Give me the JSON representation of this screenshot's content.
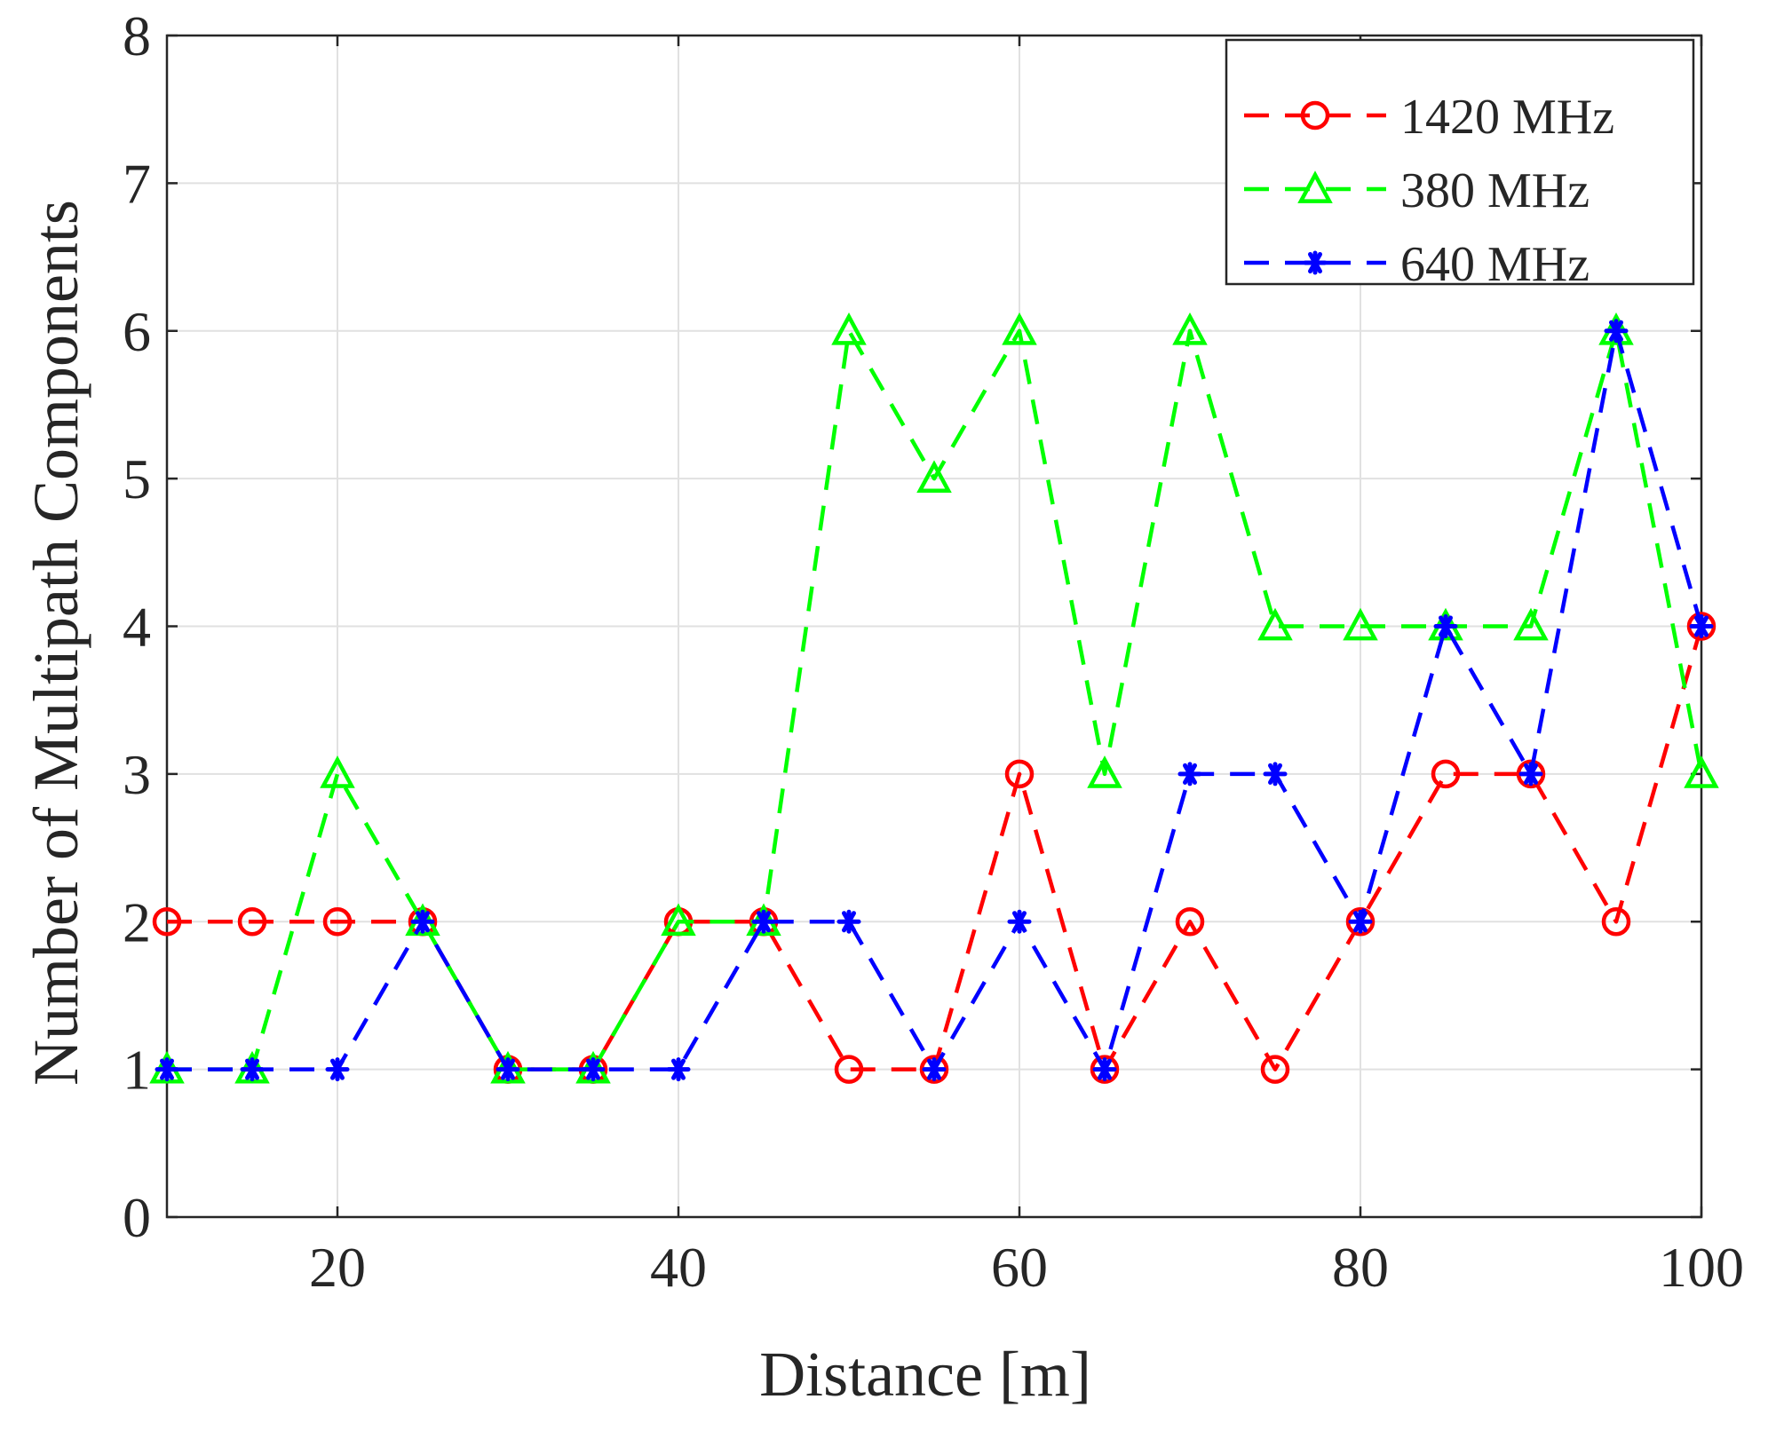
{
  "chart_data": {
    "type": "line",
    "title": "",
    "xlabel": "Distance [m]",
    "ylabel": "Number of Multipath Components",
    "xlim": [
      10,
      100
    ],
    "ylim": [
      0,
      8
    ],
    "xticks": [
      20,
      40,
      60,
      80,
      100
    ],
    "yticks": [
      0,
      1,
      2,
      3,
      4,
      5,
      6,
      7,
      8
    ],
    "grid": true,
    "legend_position": "top-right",
    "x": [
      10,
      15,
      20,
      25,
      30,
      35,
      40,
      45,
      50,
      55,
      60,
      65,
      70,
      75,
      80,
      85,
      90,
      95,
      100
    ],
    "series": [
      {
        "name": "1420 MHz",
        "color": "#ff0000",
        "marker": "circle",
        "line_style": "dashed",
        "values": [
          2,
          2,
          2,
          2,
          1,
          1,
          2,
          2,
          1,
          1,
          3,
          1,
          2,
          1,
          2,
          3,
          3,
          2,
          4
        ]
      },
      {
        "name": "380 MHz",
        "color": "#00ff00",
        "marker": "triangle",
        "line_style": "dashed",
        "values": [
          1,
          1,
          3,
          2,
          1,
          1,
          2,
          2,
          6,
          5,
          6,
          3,
          6,
          4,
          4,
          4,
          4,
          6,
          3
        ]
      },
      {
        "name": "640 MHz",
        "color": "#0000ff",
        "marker": "asterisk",
        "line_style": "dashed",
        "values": [
          1,
          1,
          1,
          2,
          1,
          1,
          1,
          2,
          2,
          1,
          2,
          1,
          3,
          3,
          2,
          4,
          3,
          6,
          4
        ]
      }
    ]
  }
}
